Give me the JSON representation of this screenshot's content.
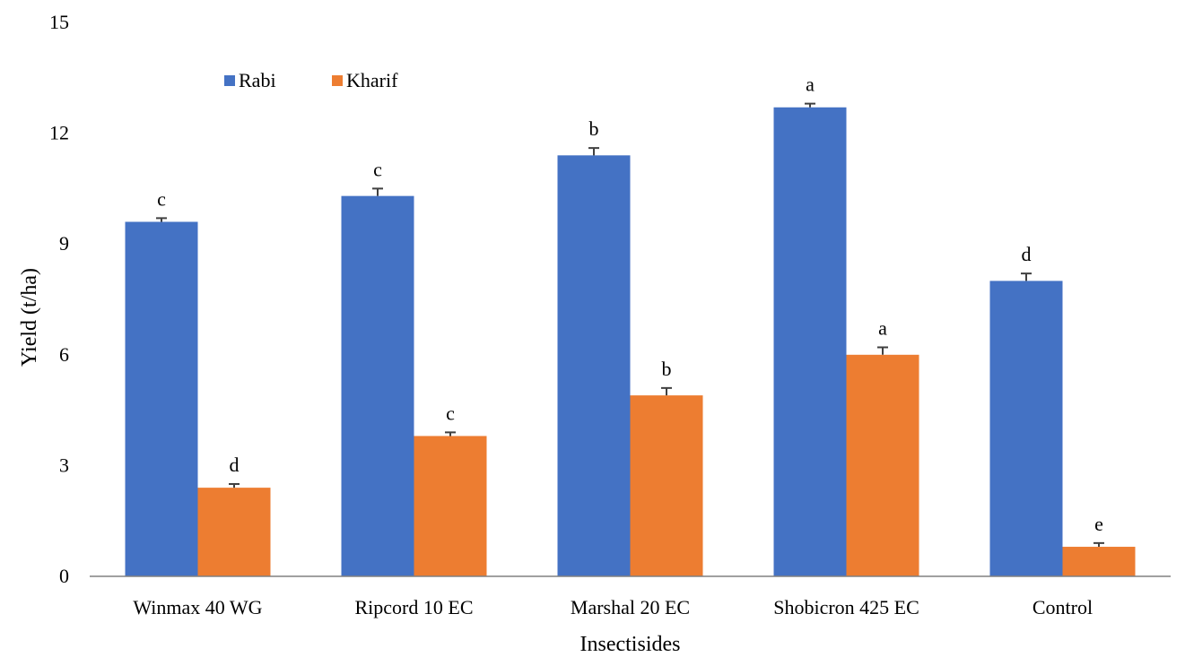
{
  "chart_data": {
    "type": "bar",
    "title": "",
    "xlabel": "Insectisides",
    "ylabel": "Yield (t/ha)",
    "ylim": [
      0,
      15
    ],
    "yticks": [
      0,
      3,
      6,
      9,
      12,
      15
    ],
    "grid": false,
    "legend": "top-left",
    "categories": [
      "Winmax 40 WG",
      "Ripcord 10 EC",
      "Marshal 20 EC",
      "Shobicron 425 EC",
      "Control"
    ],
    "series": [
      {
        "name": "Rabi",
        "color": "#4472C4",
        "values": [
          9.6,
          10.3,
          11.4,
          12.7,
          8.0
        ],
        "errors": [
          0.1,
          0.2,
          0.2,
          0.1,
          0.2
        ],
        "labels": [
          "c",
          "c",
          "b",
          "a",
          "d"
        ]
      },
      {
        "name": "Kharif",
        "color": "#ED7D31",
        "values": [
          2.4,
          3.8,
          4.9,
          6.0,
          0.8
        ],
        "errors": [
          0.1,
          0.1,
          0.2,
          0.2,
          0.1
        ],
        "labels": [
          "d",
          "c",
          "b",
          "a",
          "e"
        ]
      }
    ]
  }
}
